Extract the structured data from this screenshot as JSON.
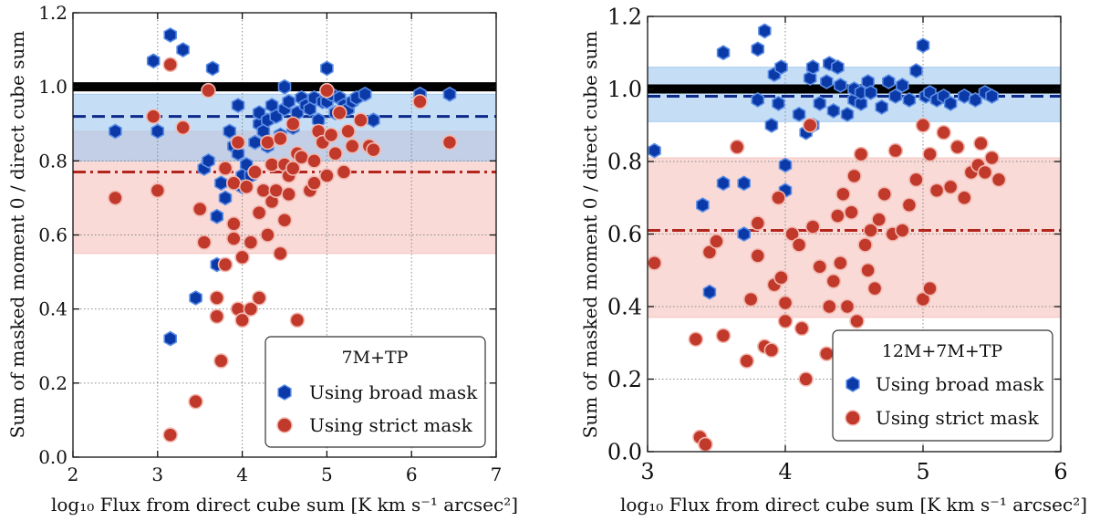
{
  "chart_data": [
    {
      "type": "scatter",
      "title": "",
      "xlabel": "log₁₀ Flux from direct cube sum [K km s⁻¹ arcsec²]",
      "ylabel": "Sum of masked moment 0 / direct cube sum",
      "xlim": [
        2,
        7
      ],
      "ylim": [
        0.0,
        1.2
      ],
      "xticks": [
        "2",
        "3",
        "4",
        "5",
        "6",
        "7"
      ],
      "yticks": [
        "0.0",
        "0.2",
        "0.4",
        "0.6",
        "0.8",
        "1.0",
        "1.2"
      ],
      "grid": true,
      "legend_position": "bottom-right",
      "legend_title": "7M+TP",
      "reference_line": 1.0,
      "series": [
        {
          "name": "Using broad mask",
          "marker": "hexagon",
          "color": "#0b3aa8",
          "edge_color": "#5b8de6",
          "median": 0.92,
          "band": [
            0.8,
            0.98
          ],
          "band_color": "#9ec8f0",
          "points": [
            [
              2.5,
              0.88
            ],
            [
              2.95,
              1.07
            ],
            [
              3.0,
              0.88
            ],
            [
              3.15,
              1.14
            ],
            [
              3.3,
              1.1
            ],
            [
              3.15,
              0.32
            ],
            [
              3.45,
              0.43
            ],
            [
              3.55,
              0.78
            ],
            [
              3.6,
              0.8
            ],
            [
              3.65,
              1.05
            ],
            [
              3.7,
              0.52
            ],
            [
              3.7,
              0.65
            ],
            [
              3.75,
              0.74
            ],
            [
              3.8,
              0.7
            ],
            [
              3.85,
              0.88
            ],
            [
              3.9,
              0.84
            ],
            [
              3.95,
              0.95
            ],
            [
              3.95,
              0.82
            ],
            [
              4.0,
              0.76
            ],
            [
              4.0,
              0.73
            ],
            [
              4.05,
              0.79
            ],
            [
              4.1,
              0.76
            ],
            [
              4.15,
              0.85
            ],
            [
              4.2,
              0.9
            ],
            [
              4.2,
              0.93
            ],
            [
              4.25,
              0.88
            ],
            [
              4.3,
              0.84
            ],
            [
              4.3,
              0.91
            ],
            [
              4.35,
              0.95
            ],
            [
              4.4,
              0.92
            ],
            [
              4.45,
              0.87
            ],
            [
              4.5,
              0.94
            ],
            [
              4.5,
              1.0
            ],
            [
              4.55,
              0.96
            ],
            [
              4.6,
              0.89
            ],
            [
              4.65,
              0.93
            ],
            [
              4.7,
              0.97
            ],
            [
              4.75,
              0.95
            ],
            [
              4.8,
              0.94
            ],
            [
              4.85,
              0.97
            ],
            [
              4.9,
              0.91
            ],
            [
              4.95,
              0.96
            ],
            [
              5.0,
              1.05
            ],
            [
              5.0,
              0.96
            ],
            [
              5.05,
              0.98
            ],
            [
              5.1,
              0.93
            ],
            [
              5.15,
              0.97
            ],
            [
              5.2,
              0.95
            ],
            [
              5.25,
              0.94
            ],
            [
              5.3,
              0.96
            ],
            [
              5.35,
              0.97
            ],
            [
              5.45,
              0.98
            ],
            [
              5.55,
              0.91
            ],
            [
              6.1,
              0.98
            ],
            [
              6.45,
              0.98
            ]
          ]
        },
        {
          "name": "Using strict mask",
          "marker": "circle",
          "color": "#c0392b",
          "edge_color": "#f2b8b0",
          "median": 0.77,
          "band": [
            0.55,
            0.88
          ],
          "band_color": "#f5c1bd",
          "points": [
            [
              2.5,
              0.7
            ],
            [
              2.95,
              0.92
            ],
            [
              3.0,
              0.72
            ],
            [
              3.15,
              1.06
            ],
            [
              3.15,
              0.06
            ],
            [
              3.3,
              0.89
            ],
            [
              3.45,
              0.15
            ],
            [
              3.5,
              0.67
            ],
            [
              3.55,
              0.58
            ],
            [
              3.6,
              0.99
            ],
            [
              3.7,
              0.43
            ],
            [
              3.7,
              0.38
            ],
            [
              3.75,
              0.26
            ],
            [
              3.8,
              0.52
            ],
            [
              3.8,
              0.78
            ],
            [
              3.9,
              0.74
            ],
            [
              3.9,
              0.63
            ],
            [
              3.9,
              0.59
            ],
            [
              3.95,
              0.4
            ],
            [
              3.95,
              0.85
            ],
            [
              4.0,
              0.37
            ],
            [
              4.0,
              0.54
            ],
            [
              4.05,
              0.73
            ],
            [
              4.1,
              0.4
            ],
            [
              4.1,
              0.58
            ],
            [
              4.15,
              0.77
            ],
            [
              4.2,
              0.66
            ],
            [
              4.2,
              0.43
            ],
            [
              4.25,
              0.72
            ],
            [
              4.3,
              0.85
            ],
            [
              4.3,
              0.6
            ],
            [
              4.35,
              0.79
            ],
            [
              4.35,
              0.69
            ],
            [
              4.4,
              0.72
            ],
            [
              4.45,
              0.55
            ],
            [
              4.45,
              0.86
            ],
            [
              4.5,
              0.64
            ],
            [
              4.5,
              0.79
            ],
            [
              4.55,
              0.76
            ],
            [
              4.55,
              0.71
            ],
            [
              4.6,
              0.9
            ],
            [
              4.6,
              0.78
            ],
            [
              4.65,
              0.37
            ],
            [
              4.65,
              0.82
            ],
            [
              4.7,
              0.81
            ],
            [
              4.8,
              0.72
            ],
            [
              4.85,
              0.8
            ],
            [
              4.85,
              0.74
            ],
            [
              4.9,
              0.88
            ],
            [
              4.95,
              0.85
            ],
            [
              5.0,
              0.99
            ],
            [
              5.0,
              0.76
            ],
            [
              5.05,
              0.87
            ],
            [
              5.1,
              0.82
            ],
            [
              5.15,
              0.93
            ],
            [
              5.2,
              0.77
            ],
            [
              5.25,
              0.88
            ],
            [
              5.3,
              0.84
            ],
            [
              5.4,
              0.91
            ],
            [
              5.5,
              0.84
            ],
            [
              5.55,
              0.83
            ],
            [
              6.1,
              0.96
            ],
            [
              6.45,
              0.85
            ]
          ]
        }
      ]
    },
    {
      "type": "scatter",
      "title": "",
      "xlabel": "log₁₀ Flux from direct cube sum [K km s⁻¹ arcsec²]",
      "ylabel": "Sum of masked moment 0 / direct cube sum",
      "xlim": [
        3,
        6
      ],
      "ylim": [
        0.0,
        1.2
      ],
      "xticks": [
        "3",
        "4",
        "5",
        "6"
      ],
      "yticks": [
        "0.0",
        "0.2",
        "0.4",
        "0.6",
        "0.8",
        "1.0",
        "1.2"
      ],
      "grid": true,
      "legend_position": "bottom-right",
      "legend_title": "12M+7M+TP",
      "reference_line": 1.0,
      "series": [
        {
          "name": "Using broad mask",
          "marker": "hexagon",
          "color": "#0b3aa8",
          "edge_color": "#5b8de6",
          "median": 0.98,
          "band": [
            0.91,
            1.06
          ],
          "band_color": "#9ec8f0",
          "points": [
            [
              3.05,
              0.83
            ],
            [
              3.4,
              0.68
            ],
            [
              3.45,
              0.44
            ],
            [
              3.55,
              1.1
            ],
            [
              3.55,
              0.74
            ],
            [
              3.7,
              0.74
            ],
            [
              3.7,
              0.6
            ],
            [
              3.8,
              0.97
            ],
            [
              3.8,
              1.11
            ],
            [
              3.85,
              1.16
            ],
            [
              3.9,
              0.9
            ],
            [
              3.92,
              1.04
            ],
            [
              3.95,
              0.96
            ],
            [
              3.97,
              1.06
            ],
            [
              4.0,
              0.72
            ],
            [
              4.0,
              0.79
            ],
            [
              4.1,
              0.93
            ],
            [
              4.15,
              0.88
            ],
            [
              4.18,
              1.03
            ],
            [
              4.2,
              1.06
            ],
            [
              4.2,
              0.9
            ],
            [
              4.25,
              0.96
            ],
            [
              4.3,
              1.02
            ],
            [
              4.32,
              1.07
            ],
            [
              4.35,
              0.94
            ],
            [
              4.38,
              1.06
            ],
            [
              4.4,
              1.01
            ],
            [
              4.45,
              0.93
            ],
            [
              4.5,
              0.97
            ],
            [
              4.5,
              1.0
            ],
            [
              4.55,
              0.96
            ],
            [
              4.55,
              0.99
            ],
            [
              4.6,
              1.02
            ],
            [
              4.62,
              0.99
            ],
            [
              4.7,
              0.95
            ],
            [
              4.75,
              1.02
            ],
            [
              4.8,
              0.98
            ],
            [
              4.85,
              1.01
            ],
            [
              4.9,
              0.97
            ],
            [
              4.95,
              1.05
            ],
            [
              5.0,
              1.12
            ],
            [
              5.02,
              0.98
            ],
            [
              5.05,
              0.99
            ],
            [
              5.1,
              0.97
            ],
            [
              5.15,
              0.98
            ],
            [
              5.2,
              0.96
            ],
            [
              5.3,
              0.98
            ],
            [
              5.38,
              0.97
            ],
            [
              5.45,
              0.99
            ],
            [
              5.5,
              0.98
            ]
          ]
        },
        {
          "name": "Using strict mask",
          "marker": "circle",
          "color": "#c0392b",
          "edge_color": "#f2b8b0",
          "median": 0.61,
          "band": [
            0.37,
            0.81
          ],
          "band_color": "#f5c1bd",
          "points": [
            [
              3.05,
              0.52
            ],
            [
              3.35,
              0.31
            ],
            [
              3.38,
              0.04
            ],
            [
              3.42,
              0.02
            ],
            [
              3.45,
              0.55
            ],
            [
              3.5,
              0.58
            ],
            [
              3.55,
              0.32
            ],
            [
              3.65,
              0.84
            ],
            [
              3.72,
              0.25
            ],
            [
              3.75,
              0.42
            ],
            [
              3.8,
              0.63
            ],
            [
              3.8,
              0.54
            ],
            [
              3.85,
              0.29
            ],
            [
              3.9,
              0.28
            ],
            [
              3.92,
              0.46
            ],
            [
              3.95,
              0.7
            ],
            [
              3.97,
              0.48
            ],
            [
              4.0,
              0.41
            ],
            [
              4.0,
              0.36
            ],
            [
              4.05,
              0.6
            ],
            [
              4.1,
              0.57
            ],
            [
              4.12,
              0.34
            ],
            [
              4.15,
              0.2
            ],
            [
              4.18,
              0.9
            ],
            [
              4.2,
              0.62
            ],
            [
              4.25,
              0.51
            ],
            [
              4.3,
              0.27
            ],
            [
              4.32,
              0.4
            ],
            [
              4.35,
              0.47
            ],
            [
              4.38,
              0.65
            ],
            [
              4.4,
              0.52
            ],
            [
              4.42,
              0.71
            ],
            [
              4.45,
              0.4
            ],
            [
              4.48,
              0.66
            ],
            [
              4.5,
              0.76
            ],
            [
              4.52,
              0.36
            ],
            [
              4.55,
              0.82
            ],
            [
              4.58,
              0.57
            ],
            [
              4.6,
              0.5
            ],
            [
              4.62,
              0.61
            ],
            [
              4.65,
              0.45
            ],
            [
              4.68,
              0.64
            ],
            [
              4.72,
              0.71
            ],
            [
              4.78,
              0.6
            ],
            [
              4.8,
              0.83
            ],
            [
              4.85,
              0.61
            ],
            [
              4.9,
              0.68
            ],
            [
              4.95,
              0.75
            ],
            [
              5.0,
              0.42
            ],
            [
              5.0,
              0.9
            ],
            [
              5.05,
              0.45
            ],
            [
              5.05,
              0.82
            ],
            [
              5.1,
              0.72
            ],
            [
              5.15,
              0.88
            ],
            [
              5.2,
              0.73
            ],
            [
              5.25,
              0.84
            ],
            [
              5.3,
              0.7
            ],
            [
              5.35,
              0.77
            ],
            [
              5.4,
              0.79
            ],
            [
              5.42,
              0.85
            ],
            [
              5.45,
              0.77
            ],
            [
              5.5,
              0.81
            ],
            [
              5.55,
              0.75
            ]
          ]
        }
      ]
    }
  ]
}
